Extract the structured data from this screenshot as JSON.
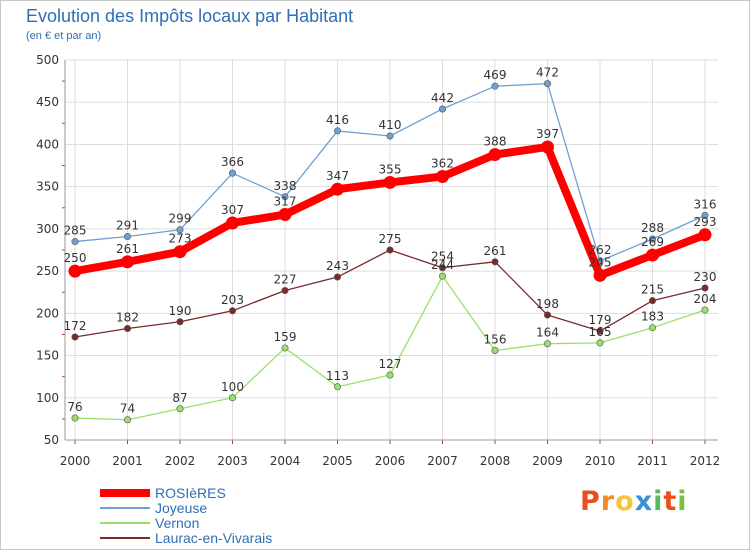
{
  "chart_data": {
    "type": "line",
    "title": "Evolution des Impôts locaux par Habitant",
    "subtitle": "(en € et par an)",
    "x": [
      "2000",
      "2001",
      "2002",
      "2003",
      "2004",
      "2005",
      "2006",
      "2007",
      "2008",
      "2009",
      "2010",
      "2011",
      "2012"
    ],
    "y_ticks": [
      "50",
      "100",
      "150",
      "200",
      "250",
      "300",
      "350",
      "400",
      "450",
      "500"
    ],
    "ylim": [
      50,
      500
    ],
    "grid": true,
    "legend_position": "bottom-left",
    "series": [
      {
        "name": "ROSIèRES",
        "color": "#ff0000",
        "values": [
          250,
          261,
          273,
          307,
          317,
          347,
          355,
          362,
          388,
          397,
          245,
          269,
          293
        ]
      },
      {
        "name": "Joyeuse",
        "color": "#6fa0d0",
        "values": [
          285,
          291,
          299,
          366,
          338,
          416,
          410,
          442,
          469,
          472,
          262,
          288,
          316
        ]
      },
      {
        "name": "Vernon",
        "color": "#99e06a",
        "values": [
          76,
          74,
          87,
          100,
          159,
          113,
          127,
          244,
          156,
          164,
          165,
          183,
          204
        ]
      },
      {
        "name": "Laurac-en-Vivarais",
        "color": "#7a2a2a",
        "values": [
          172,
          182,
          190,
          203,
          227,
          243,
          275,
          254,
          261,
          198,
          179,
          215,
          230
        ]
      }
    ]
  },
  "logo": {
    "text": "Proxiti",
    "colors": [
      "#e94e1b",
      "#f28c28",
      "#f6c53a",
      "#3a8fd6",
      "#5cb85c",
      "#e94e1b",
      "#7ac143"
    ]
  }
}
